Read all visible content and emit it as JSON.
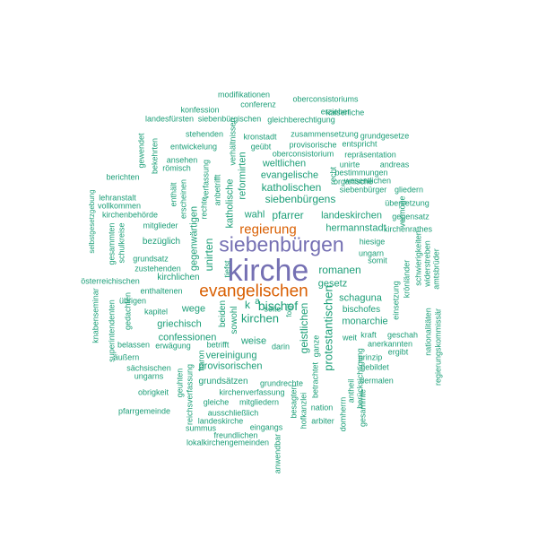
{
  "colors": {
    "small": "#1b9e77",
    "medium": "#d95f02",
    "large": "#7570b3"
  },
  "words": [
    {
      "text": "kirche",
      "tier": "large"
    },
    {
      "text": "siebenbürgen",
      "tier": "large"
    },
    {
      "text": "evangelischen",
      "tier": "medium"
    },
    {
      "text": "regierung",
      "tier": "medium"
    },
    {
      "text": "bischof",
      "tier": "small"
    },
    {
      "text": "kirchen",
      "tier": "small"
    },
    {
      "text": "protestantischen",
      "tier": "small"
    },
    {
      "text": "siebenbürgens",
      "tier": "small"
    },
    {
      "text": "katholischen",
      "tier": "small"
    },
    {
      "text": "weltlichen",
      "tier": "small"
    },
    {
      "text": "evangelische",
      "tier": "small"
    },
    {
      "text": "pfarrer",
      "tier": "small"
    },
    {
      "text": "wahl",
      "tier": "small"
    },
    {
      "text": "landeskirchen",
      "tier": "small"
    },
    {
      "text": "hermannstadt",
      "tier": "small"
    },
    {
      "text": "romanen",
      "tier": "small"
    },
    {
      "text": "gesetz",
      "tier": "small"
    },
    {
      "text": "schaguna",
      "tier": "small"
    },
    {
      "text": "bischofes",
      "tier": "small"
    },
    {
      "text": "monarchie",
      "tier": "small"
    },
    {
      "text": "geistlichen",
      "tier": "small"
    },
    {
      "text": "unirten",
      "tier": "small"
    },
    {
      "text": "gegenwärtigen",
      "tier": "small"
    },
    {
      "text": "katholische",
      "tier": "small"
    },
    {
      "text": "reformirten",
      "tier": "small"
    },
    {
      "text": "wege",
      "tier": "small"
    },
    {
      "text": "griechisch",
      "tier": "small"
    },
    {
      "text": "confessionen",
      "tier": "small"
    },
    {
      "text": "weise",
      "tier": "small"
    },
    {
      "text": "vereinigung",
      "tier": "small"
    },
    {
      "text": "provisorischen",
      "tier": "small"
    },
    {
      "text": "grundsätzen",
      "tier": "small"
    },
    {
      "text": "beiden",
      "tier": "small"
    },
    {
      "text": "sowohl",
      "tier": "small"
    },
    {
      "text": "modifikationen",
      "tier": "small"
    },
    {
      "text": "oberconsistoriums",
      "tier": "small"
    },
    {
      "text": "konfession",
      "tier": "small"
    },
    {
      "text": "conferenz",
      "tier": "small"
    },
    {
      "text": "erzieher",
      "tier": "small"
    },
    {
      "text": "kaiserliche",
      "tier": "small"
    },
    {
      "text": "landesfürsten",
      "tier": "small"
    },
    {
      "text": "siebenbürgischen",
      "tier": "small"
    },
    {
      "text": "gleichberechtigung",
      "tier": "small"
    },
    {
      "text": "stehenden",
      "tier": "small"
    },
    {
      "text": "kronstadt",
      "tier": "small"
    },
    {
      "text": "zusammensetzung",
      "tier": "small"
    },
    {
      "text": "grundgesetze",
      "tier": "small"
    },
    {
      "text": "entwickelung",
      "tier": "small"
    },
    {
      "text": "geübt",
      "tier": "small"
    },
    {
      "text": "provisorische",
      "tier": "small"
    },
    {
      "text": "entspricht",
      "tier": "small"
    },
    {
      "text": "oberconsistorium",
      "tier": "small"
    },
    {
      "text": "repräsentation",
      "tier": "small"
    },
    {
      "text": "ansehen",
      "tier": "small"
    },
    {
      "text": "römisch",
      "tier": "small"
    },
    {
      "text": "unirte",
      "tier": "small"
    },
    {
      "text": "andreas",
      "tier": "small"
    },
    {
      "text": "bestimmungen",
      "tier": "small"
    },
    {
      "text": "berichten",
      "tier": "small"
    },
    {
      "text": "organische",
      "tier": "small"
    },
    {
      "text": "wesentlichen",
      "tier": "small"
    },
    {
      "text": "siebenbürger",
      "tier": "small"
    },
    {
      "text": "gliedern",
      "tier": "small"
    },
    {
      "text": "übersetzung",
      "tier": "small"
    },
    {
      "text": "lehranstalt",
      "tier": "small"
    },
    {
      "text": "vollkommen",
      "tier": "small"
    },
    {
      "text": "kirchenbehörde",
      "tier": "small"
    },
    {
      "text": "gegensatz",
      "tier": "small"
    },
    {
      "text": "mitglieder",
      "tier": "small"
    },
    {
      "text": "kirchenrathes",
      "tier": "small"
    },
    {
      "text": "bezüglich",
      "tier": "small"
    },
    {
      "text": "hiesige",
      "tier": "small"
    },
    {
      "text": "ungarn",
      "tier": "small"
    },
    {
      "text": "grundsatz",
      "tier": "small"
    },
    {
      "text": "zustehenden",
      "tier": "small"
    },
    {
      "text": "kirchlichen",
      "tier": "small"
    },
    {
      "text": "österreichischen",
      "tier": "small"
    },
    {
      "text": "enthaltenen",
      "tier": "small"
    },
    {
      "text": "übrigen",
      "tier": "small"
    },
    {
      "text": "kapitel",
      "tier": "small"
    },
    {
      "text": "seite",
      "tier": "small"
    },
    {
      "text": "belassen",
      "tier": "small"
    },
    {
      "text": "erwägung",
      "tier": "small"
    },
    {
      "text": "betrifft",
      "tier": "small"
    },
    {
      "text": "darin",
      "tier": "small"
    },
    {
      "text": "äußern",
      "tier": "small"
    },
    {
      "text": "sächsischen",
      "tier": "small"
    },
    {
      "text": "ungarns",
      "tier": "small"
    },
    {
      "text": "obrigkeit",
      "tier": "small"
    },
    {
      "text": "kirchenverfassung",
      "tier": "small"
    },
    {
      "text": "gleiche",
      "tier": "small"
    },
    {
      "text": "mitgliedern",
      "tier": "small"
    },
    {
      "text": "ausschließlich",
      "tier": "small"
    },
    {
      "text": "grundrechte",
      "tier": "small"
    },
    {
      "text": "pfarrgemeinde",
      "tier": "small"
    },
    {
      "text": "landeskirche",
      "tier": "small"
    },
    {
      "text": "summus",
      "tier": "small"
    },
    {
      "text": "eingangs",
      "tier": "small"
    },
    {
      "text": "freundlichen",
      "tier": "small"
    },
    {
      "text": "lokalkirchengemeinden",
      "tier": "small"
    },
    {
      "text": "nation",
      "tier": "small"
    },
    {
      "text": "arbiter",
      "tier": "small"
    },
    {
      "text": "gebildet",
      "tier": "small"
    },
    {
      "text": "dermalen",
      "tier": "small"
    },
    {
      "text": "prinzip",
      "tier": "small"
    },
    {
      "text": "kraft",
      "tier": "small"
    },
    {
      "text": "geschah",
      "tier": "small"
    },
    {
      "text": "anerkannten",
      "tier": "small"
    },
    {
      "text": "ergibt",
      "tier": "small"
    },
    {
      "text": "somit",
      "tier": "small"
    },
    {
      "text": "weit",
      "tier": "small"
    },
    {
      "text": "gewendet",
      "tier": "small"
    },
    {
      "text": "bekehrten",
      "tier": "small"
    },
    {
      "text": "selbstgesetzgebung",
      "tier": "small"
    },
    {
      "text": "gesammten",
      "tier": "small"
    },
    {
      "text": "schulkreise",
      "tier": "small"
    },
    {
      "text": "knabenseminar",
      "tier": "small"
    },
    {
      "text": "superintendenten",
      "tier": "small"
    },
    {
      "text": "gedachten",
      "tier": "small"
    },
    {
      "text": "enthält",
      "tier": "small"
    },
    {
      "text": "erscheinen",
      "tier": "small"
    },
    {
      "text": "rechte",
      "tier": "small"
    },
    {
      "text": "verfassung",
      "tier": "small"
    },
    {
      "text": "anbetrifft",
      "tier": "small"
    },
    {
      "text": "verhältnissen",
      "tier": "small"
    },
    {
      "text": "tiefst",
      "tier": "small"
    },
    {
      "text": "baron",
      "tier": "small"
    },
    {
      "text": "geuhten",
      "tier": "small"
    },
    {
      "text": "reichsverfassung",
      "tier": "small"
    },
    {
      "text": "besagten",
      "tier": "small"
    },
    {
      "text": "hofkanzlei",
      "tier": "small"
    },
    {
      "text": "betrachtet",
      "tier": "small"
    },
    {
      "text": "ganze",
      "tier": "small"
    },
    {
      "text": "folgt",
      "tier": "small"
    },
    {
      "text": "anwendbar",
      "tier": "small"
    },
    {
      "text": "domherrn",
      "tier": "small"
    },
    {
      "text": "antheil",
      "tier": "small"
    },
    {
      "text": "berücksichtigung",
      "tier": "small"
    },
    {
      "text": "gesammte",
      "tier": "small"
    },
    {
      "text": "einsetzung",
      "tier": "small"
    },
    {
      "text": "krönländer",
      "tier": "small"
    },
    {
      "text": "schwierigkeiten",
      "tier": "small"
    },
    {
      "text": "widerstreben",
      "tier": "small"
    },
    {
      "text": "amtsbrüder",
      "tier": "small"
    },
    {
      "text": "nationalitäten",
      "tier": "small"
    },
    {
      "text": "regierungskommissär",
      "tier": "small"
    },
    {
      "text": "vermöge",
      "tier": "small"
    },
    {
      "text": "recht",
      "tier": "small"
    },
    {
      "text": "k",
      "tier": "small"
    },
    {
      "text": "a",
      "tier": "small"
    }
  ]
}
